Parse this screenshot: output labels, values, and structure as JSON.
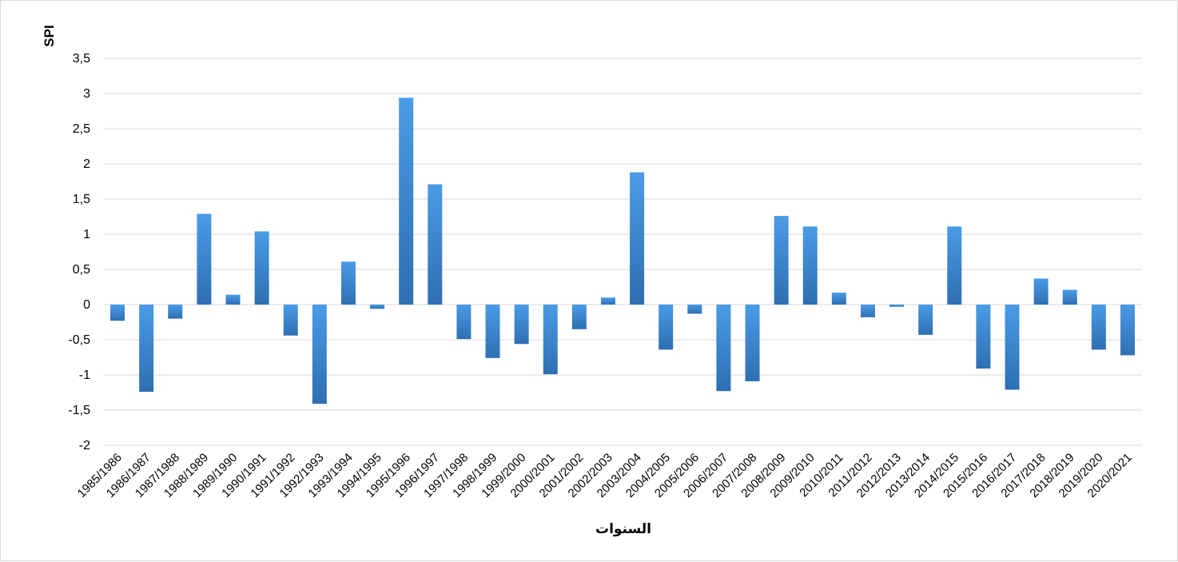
{
  "chart_data": {
    "type": "bar",
    "title": "",
    "xlabel": "السنوات",
    "ylabel": "SPI",
    "ylim": [
      -2,
      3.5
    ],
    "yticks": [
      "3,5",
      "3",
      "2,5",
      "2",
      "1,5",
      "1",
      "0,5",
      "0",
      "-0,5",
      "-1",
      "-1,5",
      "-2"
    ],
    "ytick_values": [
      3.5,
      3,
      2.5,
      2,
      1.5,
      1,
      0.5,
      0,
      -0.5,
      -1,
      -1.5,
      -2
    ],
    "grid": true,
    "legend": "none",
    "bar_color_top": "#4a9be6",
    "bar_color_bottom": "#2e6fb2",
    "grid_color": "#d9d9d9",
    "categories": [
      "1985/1986",
      "1986/1987",
      "1987/1988",
      "1988/1989",
      "1989/1990",
      "1990/1991",
      "1991/1992",
      "1992/1993",
      "1993/1994",
      "1994/1995",
      "1995/1996",
      "1996/1997",
      "1997/1998",
      "1998/1999",
      "1999/2000",
      "2000/2001",
      "2001/2002",
      "2002/2003",
      "2003/2004",
      "2004/2005",
      "2005/2006",
      "2006/2007",
      "2007/2008",
      "2008/2009",
      "2009/2010",
      "2010/2011",
      "2011/2012",
      "2012/2013",
      "2013/2014",
      "2014/2015",
      "2015/2016",
      "2016/2017",
      "2017/2018",
      "2018/2019",
      "2019/2020",
      "2020/2021"
    ],
    "values": [
      -0.23,
      -1.24,
      -0.2,
      1.29,
      0.14,
      1.04,
      -0.44,
      -1.41,
      0.61,
      -0.06,
      2.94,
      1.71,
      -0.49,
      -0.76,
      -0.56,
      -0.99,
      -0.35,
      0.1,
      1.88,
      -0.64,
      -0.13,
      -1.23,
      -1.09,
      1.26,
      1.11,
      0.17,
      -0.18,
      -0.03,
      -0.43,
      1.11,
      -0.91,
      -1.21,
      0.37,
      0.21,
      -0.64,
      -0.72
    ]
  }
}
